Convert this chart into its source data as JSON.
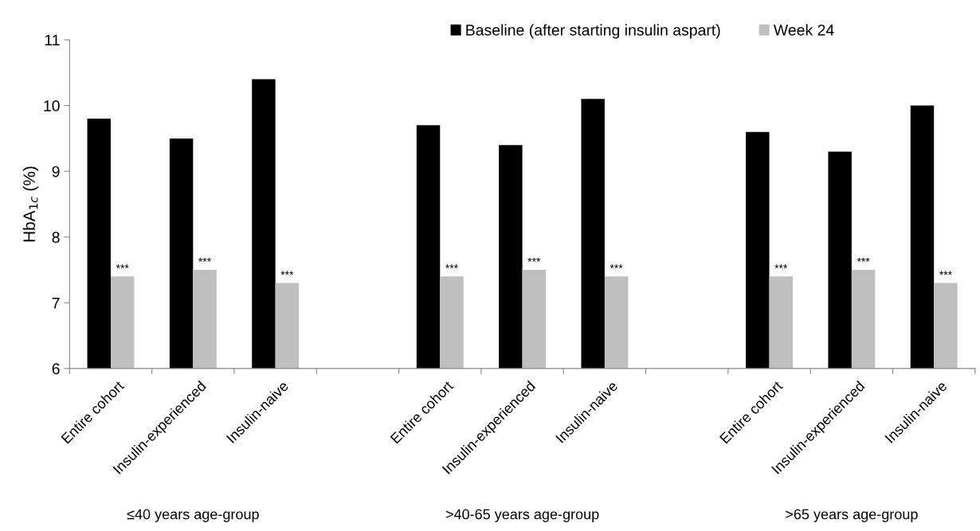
{
  "chart_data": {
    "type": "bar",
    "ylabel": "HbA$_{1c}$ (%)",
    "categories": [
      "Entire cohort",
      "Insulin-experienced",
      "Insulin-naive",
      null,
      "Entire cohort",
      "Insulin-experienced",
      "Insulin-naive",
      null,
      "Entire cohort",
      "Insulin-experienced",
      "Insulin-naive"
    ],
    "series": [
      {
        "name": "Baseline (after starting insulin aspart)",
        "color": "#000000",
        "values": [
          9.8,
          9.5,
          10.4,
          null,
          9.7,
          9.4,
          10.1,
          null,
          9.6,
          9.3,
          10.0
        ]
      },
      {
        "name": "Week 24",
        "color": "#bfbfbf",
        "values": [
          7.4,
          7.5,
          7.3,
          null,
          7.4,
          7.5,
          7.4,
          null,
          7.4,
          7.5,
          7.3
        ],
        "value_labels": [
          "***",
          "***",
          "***",
          null,
          "***",
          "***",
          "***",
          null,
          "***",
          "***",
          "***"
        ]
      }
    ],
    "annotations": [
      "≤40 years age-group",
      ">40-65 years age-group",
      ">65 years age-group"
    ],
    "ylim": [
      6,
      11
    ],
    "yticks": [
      6,
      7,
      8,
      9,
      10,
      11
    ],
    "grid": false,
    "legend": "top right"
  }
}
